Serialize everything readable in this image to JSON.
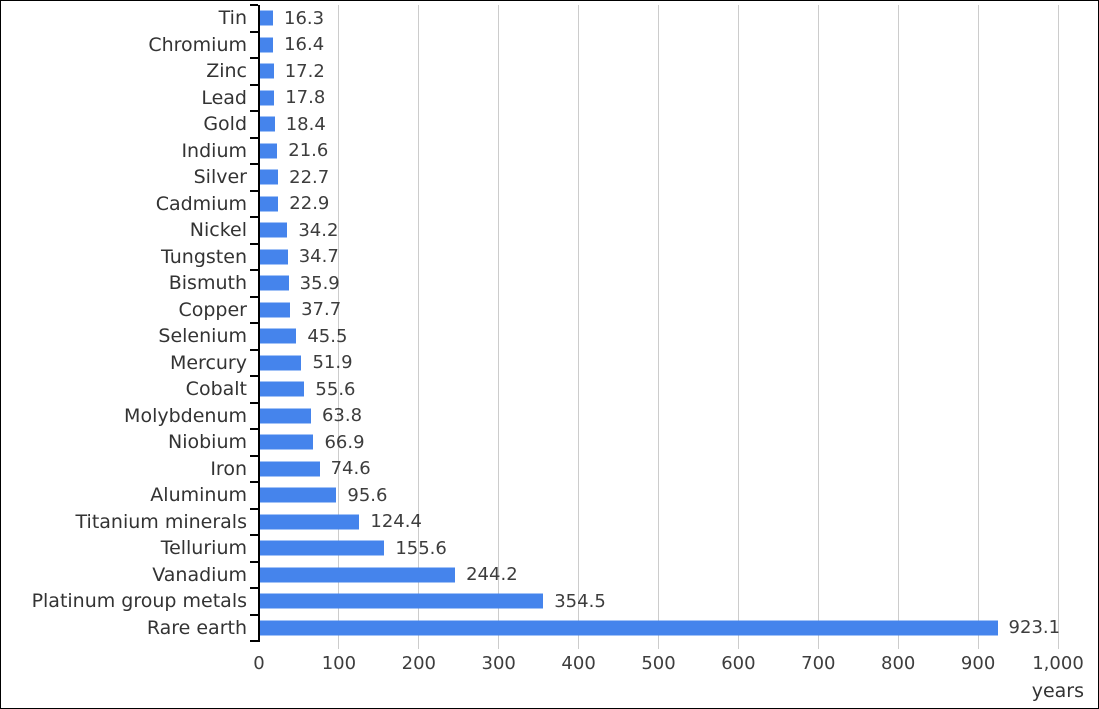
{
  "chart_data": {
    "type": "bar",
    "orientation": "horizontal",
    "title": "",
    "xlabel": "years",
    "ylabel": "",
    "xlim": [
      0,
      1000
    ],
    "grid": true,
    "legend": "none",
    "categories": [
      "Tin",
      "Chromium",
      "Zinc",
      "Lead",
      "Gold",
      "Indium",
      "Silver",
      "Cadmium",
      "Nickel",
      "Tungsten",
      "Bismuth",
      "Copper",
      "Selenium",
      "Mercury",
      "Cobalt",
      "Molybdenum",
      "Niobium",
      "Iron",
      "Aluminum",
      "Titanium minerals",
      "Tellurium",
      "Vanadium",
      "Platinum group metals",
      "Rare earth"
    ],
    "values": [
      16.3,
      16.4,
      17.2,
      17.8,
      18.4,
      21.6,
      22.7,
      22.9,
      34.2,
      34.7,
      35.9,
      37.7,
      45.5,
      51.9,
      55.6,
      63.8,
      66.9,
      74.6,
      95.6,
      124.4,
      155.6,
      244.2,
      354.5,
      923.1
    ],
    "value_labels": [
      "16.3",
      "16.4",
      "17.2",
      "17.8",
      "18.4",
      "21.6",
      "22.7",
      "22.9",
      "34.2",
      "34.7",
      "35.9",
      "37.7",
      "45.5",
      "51.9",
      "55.6",
      "63.8",
      "66.9",
      "74.6",
      "95.6",
      "124.4",
      "155.6",
      "244.2",
      "354.5",
      "923.1"
    ],
    "x_ticks": [
      0,
      100,
      200,
      300,
      400,
      500,
      600,
      700,
      800,
      900,
      1000
    ],
    "x_tick_labels": [
      "0",
      "100",
      "200",
      "300",
      "400",
      "500",
      "600",
      "700",
      "800",
      "900",
      "1,000"
    ],
    "colors": {
      "bar": "#4584EC",
      "gridline": "#CCCCCC",
      "axis": "#000000",
      "category_label": "#333333",
      "value_label": "#3D3D3D",
      "tick_label": "#3D3D3D",
      "axis_title": "#333333",
      "background": "#FFFFFF",
      "frame_border": "#000000"
    }
  }
}
